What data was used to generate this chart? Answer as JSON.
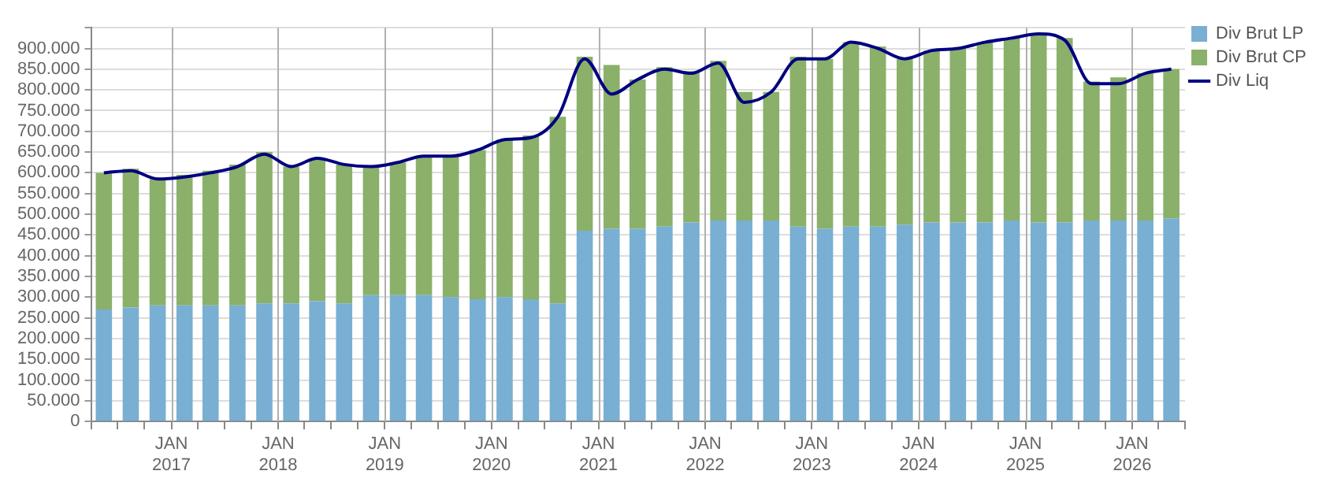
{
  "chart_data": {
    "type": "bar",
    "stacked": true,
    "grid": true,
    "legend": "top right",
    "x": [
      "2016-05-15",
      "2016-08-15",
      "2016-11-15",
      "2017-02-15",
      "2017-05-15",
      "2017-08-15",
      "2017-11-15",
      "2018-02-15",
      "2018-05-15",
      "2018-08-15",
      "2018-11-15",
      "2019-02-15",
      "2019-05-15",
      "2019-08-15",
      "2019-11-15",
      "2020-02-15",
      "2020-05-15",
      "2020-08-15",
      "2020-11-15",
      "2021-02-15",
      "2021-05-15",
      "2021-08-15",
      "2021-11-15",
      "2022-02-15",
      "2022-05-15",
      "2022-08-15",
      "2022-11-15",
      "2023-02-15",
      "2023-05-15",
      "2023-08-15",
      "2023-11-15",
      "2024-02-15",
      "2024-05-15",
      "2024-08-15",
      "2024-11-15",
      "2025-02-15",
      "2025-05-15",
      "2025-08-15",
      "2025-11-15",
      "2026-02-15",
      "2026-05-15"
    ],
    "series": [
      {
        "name": "Div Brut LP",
        "color": "#78afd2",
        "values": [
          270000,
          275000,
          280000,
          280000,
          280000,
          280000,
          285000,
          285000,
          290000,
          285000,
          305000,
          305000,
          305000,
          300000,
          295000,
          300000,
          295000,
          285000,
          460000,
          465000,
          465000,
          470000,
          480000,
          485000,
          485000,
          485000,
          470000,
          465000,
          470000,
          470000,
          475000,
          480000,
          480000,
          480000,
          485000,
          480000,
          480000,
          485000,
          485000,
          485000,
          490000
        ]
      },
      {
        "name": "Div Brut CP",
        "color": "#8ab06a",
        "values": [
          330000,
          335000,
          305000,
          315000,
          325000,
          340000,
          365000,
          330000,
          345000,
          335000,
          310000,
          320000,
          335000,
          340000,
          360000,
          380000,
          395000,
          450000,
          420000,
          395000,
          360000,
          385000,
          365000,
          385000,
          310000,
          310000,
          410000,
          410000,
          445000,
          435000,
          400000,
          415000,
          420000,
          435000,
          440000,
          455000,
          445000,
          335000,
          345000,
          355000,
          360000
        ]
      },
      {
        "name": "Div Liq",
        "type": "line",
        "color": "#000080",
        "values": [
          600000,
          605000,
          585000,
          590000,
          600000,
          615000,
          645000,
          615000,
          635000,
          620000,
          615000,
          625000,
          640000,
          640000,
          655000,
          680000,
          685000,
          735000,
          875000,
          790000,
          825000,
          850000,
          840000,
          865000,
          770000,
          795000,
          875000,
          875000,
          915000,
          900000,
          875000,
          895000,
          900000,
          915000,
          925000,
          935000,
          920000,
          815000,
          815000,
          840000,
          850000
        ]
      }
    ],
    "xlim": [
      "2016-04-01",
      "2026-07-01"
    ],
    "xticks": [
      {
        "value": "2016-04-01",
        "label": null
      },
      {
        "value": "2016-07-01",
        "label": null
      },
      {
        "value": "2016-10-01",
        "label": null
      },
      {
        "value": "2017-01-01",
        "label": "JAN 2017"
      },
      {
        "value": "2017-04-01",
        "label": null
      },
      {
        "value": "2017-07-01",
        "label": null
      },
      {
        "value": "2017-10-01",
        "label": null
      },
      {
        "value": "2018-01-01",
        "label": "JAN 2018"
      },
      {
        "value": "2018-04-01",
        "label": null
      },
      {
        "value": "2018-07-01",
        "label": null
      },
      {
        "value": "2018-10-01",
        "label": null
      },
      {
        "value": "2019-01-01",
        "label": "JAN 2019"
      },
      {
        "value": "2019-04-01",
        "label": null
      },
      {
        "value": "2019-07-01",
        "label": null
      },
      {
        "value": "2019-10-01",
        "label": null
      },
      {
        "value": "2020-01-01",
        "label": "JAN 2020"
      },
      {
        "value": "2020-04-01",
        "label": null
      },
      {
        "value": "2020-07-01",
        "label": null
      },
      {
        "value": "2020-10-01",
        "label": null
      },
      {
        "value": "2021-01-01",
        "label": "JAN 2021"
      },
      {
        "value": "2021-04-01",
        "label": null
      },
      {
        "value": "2021-07-01",
        "label": null
      },
      {
        "value": "2021-10-01",
        "label": null
      },
      {
        "value": "2022-01-01",
        "label": "JAN 2022"
      },
      {
        "value": "2022-04-01",
        "label": null
      },
      {
        "value": "2022-07-01",
        "label": null
      },
      {
        "value": "2022-10-01",
        "label": null
      },
      {
        "value": "2023-01-01",
        "label": "JAN 2023"
      },
      {
        "value": "2023-04-01",
        "label": null
      },
      {
        "value": "2023-07-01",
        "label": null
      },
      {
        "value": "2023-10-01",
        "label": null
      },
      {
        "value": "2024-01-01",
        "label": "JAN 2024"
      },
      {
        "value": "2024-04-01",
        "label": null
      },
      {
        "value": "2024-07-01",
        "label": null
      },
      {
        "value": "2024-10-01",
        "label": null
      },
      {
        "value": "2025-01-01",
        "label": "JAN 2025"
      },
      {
        "value": "2025-04-01",
        "label": null
      },
      {
        "value": "2025-07-01",
        "label": null
      },
      {
        "value": "2025-10-01",
        "label": null
      },
      {
        "value": "2026-01-01",
        "label": "JAN 2026"
      },
      {
        "value": "2026-04-01",
        "label": null
      },
      {
        "value": "2026-07-01",
        "label": null
      }
    ],
    "ylim": [
      0,
      950000
    ],
    "yticks": [
      {
        "value": 0,
        "label": "0"
      },
      {
        "value": 50000,
        "label": "50.000"
      },
      {
        "value": 100000,
        "label": "100.000"
      },
      {
        "value": 150000,
        "label": "150.000"
      },
      {
        "value": 200000,
        "label": "200.000"
      },
      {
        "value": 250000,
        "label": "250.000"
      },
      {
        "value": 300000,
        "label": "300.000"
      },
      {
        "value": 350000,
        "label": "350.000"
      },
      {
        "value": 400000,
        "label": "400.000"
      },
      {
        "value": 450000,
        "label": "450.000"
      },
      {
        "value": 500000,
        "label": "500.000"
      },
      {
        "value": 550000,
        "label": "550.000"
      },
      {
        "value": 600000,
        "label": "600.000"
      },
      {
        "value": 650000,
        "label": "650.000"
      },
      {
        "value": 700000,
        "label": "700.000"
      },
      {
        "value": 750000,
        "label": "750.000"
      },
      {
        "value": 800000,
        "label": "800.000"
      },
      {
        "value": 850000,
        "label": "850.000"
      },
      {
        "value": 900000,
        "label": "900.000"
      }
    ]
  }
}
